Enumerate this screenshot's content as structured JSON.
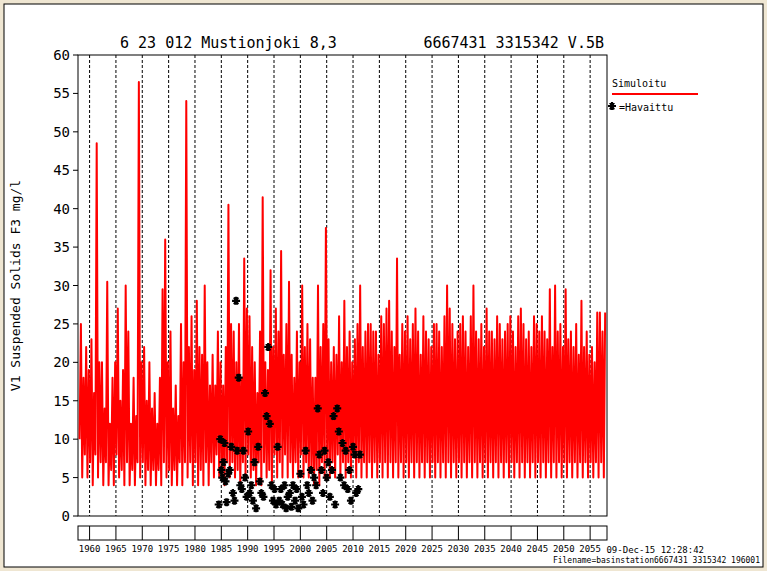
{
  "chart_data": {
    "type": "line",
    "title": "6 23 012 Mustionjoki 8,3",
    "subtitle": "6667431 3315342 V.5B",
    "y_label": "V1 Suspended Solids F3 mg/l",
    "annotations": [
      "09-Dec-15 12:28:42",
      "Filename=basinstation6667431 3315342 196001"
    ],
    "xlim": [
      1957.8,
      2058.2
    ],
    "xticks": [
      1960,
      1965,
      1970,
      1975,
      1980,
      1985,
      1990,
      1995,
      2000,
      2005,
      2010,
      2015,
      2020,
      2025,
      2030,
      2035,
      2040,
      2045,
      2050,
      2055
    ],
    "ylim": [
      0,
      60
    ],
    "yticks": [
      0,
      5,
      10,
      15,
      20,
      25,
      30,
      35,
      40,
      45,
      50,
      55,
      60
    ],
    "grid": true,
    "series": [
      {
        "name": "Simuloitu",
        "color": "#ff0000",
        "type": "line",
        "x": [
          1958.1,
          1958.35,
          1958.6,
          1958.85,
          1959.1,
          1959.35,
          1959.6,
          1959.85,
          1960.1,
          1960.35,
          1960.6,
          1960.85,
          1961.1,
          1961.35,
          1961.6,
          1961.85,
          1962.1,
          1962.35,
          1962.6,
          1962.85,
          1963.1,
          1963.35,
          1963.6,
          1963.85,
          1964.1,
          1964.35,
          1964.6,
          1964.85,
          1965.1,
          1965.35,
          1965.6,
          1965.85,
          1966.1,
          1966.35,
          1966.6,
          1966.85,
          1967.1,
          1967.35,
          1967.6,
          1967.85,
          1968.1,
          1968.35,
          1968.6,
          1968.85,
          1969.1,
          1969.35,
          1969.6,
          1969.85,
          1970.1,
          1970.35,
          1970.6,
          1970.85,
          1971.1,
          1971.35,
          1971.6,
          1971.85,
          1972.1,
          1972.35,
          1972.6,
          1972.85,
          1973.1,
          1973.35,
          1973.6,
          1973.85,
          1974.1,
          1974.35,
          1974.6,
          1974.85,
          1975.1,
          1975.35,
          1975.6,
          1975.85,
          1976.1,
          1976.35,
          1976.6,
          1976.85,
          1977.1,
          1977.35,
          1977.6,
          1977.85,
          1978.1,
          1978.35,
          1978.6,
          1978.85,
          1979.1,
          1979.35,
          1979.6,
          1979.85,
          1980.1,
          1980.35,
          1980.6,
          1980.85,
          1981.1,
          1981.35,
          1981.6,
          1981.85,
          1982.1,
          1982.35,
          1982.6,
          1982.85,
          1983.1,
          1983.35,
          1983.6,
          1983.85,
          1984.1,
          1984.35,
          1984.6,
          1984.85,
          1985.1,
          1985.35,
          1985.6,
          1985.85,
          1986.1,
          1986.35,
          1986.6,
          1986.85,
          1987.1,
          1987.35,
          1987.6,
          1987.85,
          1988.1,
          1988.35,
          1988.6,
          1988.85,
          1989.1,
          1989.35,
          1989.6,
          1989.85,
          1990.1,
          1990.35,
          1990.6,
          1990.85,
          1991.1,
          1991.35,
          1991.6,
          1991.85,
          1992.1,
          1992.35,
          1992.6,
          1992.85,
          1993.1,
          1993.35,
          1993.6,
          1993.85,
          1994.1,
          1994.35,
          1994.6,
          1994.85,
          1995.1,
          1995.35,
          1995.6,
          1995.85,
          1996.1,
          1996.35,
          1996.6,
          1996.85,
          1997.1,
          1997.35,
          1997.6,
          1997.85,
          1998.1,
          1998.35,
          1998.6,
          1998.85,
          1999.1,
          1999.35,
          1999.6,
          1999.85,
          2000.1,
          2000.35,
          2000.6,
          2000.85,
          2001.1,
          2001.35,
          2001.6,
          2001.85,
          2002.1,
          2002.35,
          2002.6,
          2002.85,
          2003.1,
          2003.35,
          2003.6,
          2003.85,
          2004.1,
          2004.35,
          2004.6,
          2004.85,
          2005.1,
          2005.35,
          2005.6,
          2005.85,
          2006.1,
          2006.35,
          2006.6,
          2006.85,
          2007.1,
          2007.35,
          2007.6,
          2007.85,
          2008.1,
          2008.35,
          2008.6,
          2008.85,
          2009.1,
          2009.35,
          2009.6,
          2009.85,
          2010.1,
          2010.35,
          2010.6,
          2010.85,
          2011.1,
          2011.35,
          2011.6,
          2011.85,
          2012.1,
          2012.35,
          2012.6,
          2012.85,
          2013.1,
          2013.35,
          2013.6,
          2013.85,
          2014.1,
          2014.35,
          2014.6,
          2014.85,
          2015.1,
          2015.35,
          2015.6,
          2015.85,
          2016.1,
          2016.35,
          2016.6,
          2016.85,
          2017.1,
          2017.35,
          2017.6,
          2017.85,
          2018.1,
          2018.35,
          2018.6,
          2018.85,
          2019.1,
          2019.35,
          2019.6,
          2019.85,
          2020.1,
          2020.35,
          2020.6,
          2020.85,
          2021.1,
          2021.35,
          2021.6,
          2021.85,
          2022.1,
          2022.35,
          2022.6,
          2022.85,
          2023.1,
          2023.35,
          2023.6,
          2023.85,
          2024.1,
          2024.35,
          2024.6,
          2024.85,
          2025.1,
          2025.35,
          2025.6,
          2025.85,
          2026.1,
          2026.35,
          2026.6,
          2026.85,
          2027.1,
          2027.35,
          2027.6,
          2027.85,
          2028.1,
          2028.35,
          2028.6,
          2028.85,
          2029.1,
          2029.35,
          2029.6,
          2029.85,
          2030.1,
          2030.35,
          2030.6,
          2030.85,
          2031.1,
          2031.35,
          2031.6,
          2031.85,
          2032.1,
          2032.35,
          2032.6,
          2032.85,
          2033.1,
          2033.35,
          2033.6,
          2033.85,
          2034.1,
          2034.35,
          2034.6,
          2034.85,
          2035.1,
          2035.35,
          2035.6,
          2035.85,
          2036.1,
          2036.35,
          2036.6,
          2036.85,
          2037.1,
          2037.35,
          2037.6,
          2037.85,
          2038.1,
          2038.35,
          2038.6,
          2038.85,
          2039.1,
          2039.35,
          2039.6,
          2039.85,
          2040.1,
          2040.35,
          2040.6,
          2040.85,
          2041.1,
          2041.35,
          2041.6,
          2041.85,
          2042.1,
          2042.35,
          2042.6,
          2042.85,
          2043.1,
          2043.35,
          2043.6,
          2043.85,
          2044.1,
          2044.35,
          2044.6,
          2044.85,
          2045.1,
          2045.35,
          2045.6,
          2045.85,
          2046.1,
          2046.35,
          2046.6,
          2046.85,
          2047.1,
          2047.35,
          2047.6,
          2047.85,
          2048.1,
          2048.35,
          2048.6,
          2048.85,
          2049.1,
          2049.35,
          2049.6,
          2049.85,
          2050.1,
          2050.35,
          2050.6,
          2050.85,
          2051.1,
          2051.35,
          2051.6,
          2051.85,
          2052.1,
          2052.35,
          2052.6,
          2052.85,
          2053.1,
          2053.35,
          2053.6,
          2053.85,
          2054.1,
          2054.35,
          2054.6,
          2054.85,
          2055.1,
          2055.35,
          2055.6,
          2055.85,
          2056.1,
          2056.35,
          2056.6,
          2056.85,
          2057.1,
          2057.35,
          2057.6,
          2057.85
        ],
        "values": [
          10,
          25,
          5,
          18,
          8,
          22,
          5,
          19,
          7,
          23,
          4,
          16,
          8,
          48.5,
          5,
          20,
          7,
          20,
          4,
          14,
          7,
          30.5,
          4,
          12,
          6,
          18,
          4,
          20,
          8,
          27,
          5,
          15,
          6,
          19,
          4,
          30,
          7,
          24,
          4,
          12,
          6,
          18,
          4,
          13,
          7,
          56.5,
          5,
          20,
          7,
          22,
          4,
          15,
          6,
          20,
          4,
          14,
          6,
          16,
          4,
          12,
          6,
          18,
          4,
          29.5,
          7,
          36,
          5,
          20,
          6,
          24,
          4,
          14,
          6,
          17,
          4,
          13,
          7,
          25,
          4,
          20,
          7,
          54,
          5,
          22,
          7,
          26,
          4,
          19,
          7,
          28,
          4,
          22,
          6,
          21,
          4,
          30,
          7,
          20,
          4,
          17,
          7,
          21,
          5,
          17,
          8,
          24,
          5,
          20,
          6,
          17,
          4,
          22,
          7,
          40.5,
          5,
          25,
          7,
          24,
          5,
          20,
          6,
          25,
          4,
          18,
          7,
          33.5,
          5,
          27,
          8,
          26,
          5,
          22,
          6,
          20,
          4,
          16,
          7,
          24,
          4,
          41.5,
          7,
          20,
          5,
          19,
          6,
          32,
          4,
          22,
          8,
          27,
          5,
          24,
          7,
          34.5,
          5,
          21,
          8,
          25,
          5,
          30.5,
          7,
          21,
          5,
          18,
          7,
          24,
          5,
          20,
          8,
          30,
          5,
          22,
          7,
          25,
          5,
          23,
          6,
          18,
          4,
          18,
          6,
          30,
          4,
          22,
          7,
          25,
          5,
          37.5,
          7,
          23,
          5,
          20,
          7,
          22,
          5,
          21,
          8,
          26,
          5,
          20,
          7,
          28,
          5,
          22,
          7,
          24,
          5,
          20,
          8,
          23,
          5,
          25,
          7,
          30,
          5,
          22,
          7,
          24,
          5,
          25,
          7,
          25,
          5,
          24,
          7,
          24,
          5,
          21,
          7,
          26,
          5,
          25,
          7,
          27,
          5,
          28,
          7,
          24,
          5,
          22,
          7,
          33.5,
          5,
          21,
          7,
          25,
          5,
          24,
          7,
          26,
          5,
          23,
          7,
          25,
          5,
          27,
          7,
          24,
          5,
          21,
          7,
          26,
          5,
          24,
          7,
          23,
          5,
          22,
          7,
          25,
          5,
          25,
          7,
          24,
          5,
          22,
          7,
          26,
          5,
          30,
          7,
          27,
          5,
          25,
          7,
          23,
          5,
          24,
          7,
          25,
          5,
          26,
          7,
          24,
          5,
          22,
          7,
          26,
          5,
          30,
          7,
          24,
          5,
          23,
          7,
          25,
          5,
          22,
          7,
          27,
          5,
          24,
          7,
          24,
          5,
          23,
          7,
          26,
          5,
          25,
          7,
          23,
          5,
          24,
          7,
          25,
          5,
          26,
          7,
          24,
          5,
          22,
          7,
          26,
          5,
          27,
          7,
          25,
          5,
          23,
          7,
          24,
          5,
          22,
          7,
          26,
          5,
          25,
          7,
          24,
          5,
          26,
          7,
          24,
          5,
          23,
          7,
          29.5,
          5,
          22,
          7,
          30,
          5,
          24,
          7,
          25,
          5,
          22,
          7,
          29.5,
          5,
          23,
          7,
          24,
          5,
          22,
          7,
          25,
          5,
          21,
          7,
          28,
          5,
          22,
          7,
          24,
          5,
          21,
          7,
          22,
          5,
          20,
          7,
          26.5,
          5,
          26.5,
          7,
          24,
          5,
          26.5
        ]
      },
      {
        "name": "=Havaittu",
        "color": "#000000",
        "type": "scatter",
        "marker": "star",
        "x": [
          1984.5,
          1984.8,
          1985,
          1985.2,
          1985.4,
          1985.6,
          1985.8,
          1986,
          1986.3,
          1986.6,
          1986.9,
          1987.2,
          1987.5,
          1987.8,
          1988,
          1988.3,
          1988.6,
          1988.9,
          1989.2,
          1989.5,
          1989.8,
          1990.1,
          1990.4,
          1990.7,
          1991,
          1991.3,
          1991.6,
          1992,
          1992.3,
          1992.6,
          1993,
          1993.3,
          1993.6,
          1993.9,
          1994.2,
          1994.5,
          1994.8,
          1995.1,
          1995.4,
          1995.7,
          1996,
          1996.3,
          1996.6,
          1997,
          1997.3,
          1997.6,
          1998,
          1998.3,
          1998.6,
          1999,
          1999.3,
          1999.6,
          2000,
          2000.3,
          2000.6,
          2001,
          2001.3,
          2001.6,
          2002,
          2002.3,
          2002.6,
          2003,
          2003.3,
          2003.6,
          2004,
          2004.3,
          2004.6,
          2005,
          2005.3,
          2005.6,
          2006,
          2006.3,
          2006.6,
          2007,
          2007.3,
          2007.6,
          2008,
          2008.3,
          2008.6,
          2009,
          2009.3,
          2009.6,
          2010,
          2010.3,
          2010.6,
          2011,
          2011.3
        ],
        "values": [
          1.5,
          10,
          6,
          5,
          7,
          9.5,
          4.5,
          1.8,
          5.5,
          6,
          9,
          3,
          2,
          28,
          8.5,
          18,
          4,
          3.5,
          8.5,
          5,
          2.5,
          11,
          3,
          4,
          2,
          7,
          1,
          9,
          4.5,
          3,
          2.5,
          16,
          13,
          22,
          12,
          4,
          2,
          3.5,
          1.5,
          9,
          2,
          3.5,
          1.5,
          4,
          1,
          2.5,
          3,
          1.2,
          4,
          2,
          3.5,
          1,
          5.5,
          2.5,
          1.5,
          8.5,
          4,
          3,
          6,
          2,
          5,
          4,
          14,
          8,
          6,
          3,
          8.5,
          5,
          7,
          2.5,
          6,
          13,
          1.5,
          14,
          11,
          5,
          9.5,
          4,
          8.5,
          3.5,
          6,
          2,
          9,
          8,
          3,
          3.5,
          8
        ]
      }
    ]
  }
}
